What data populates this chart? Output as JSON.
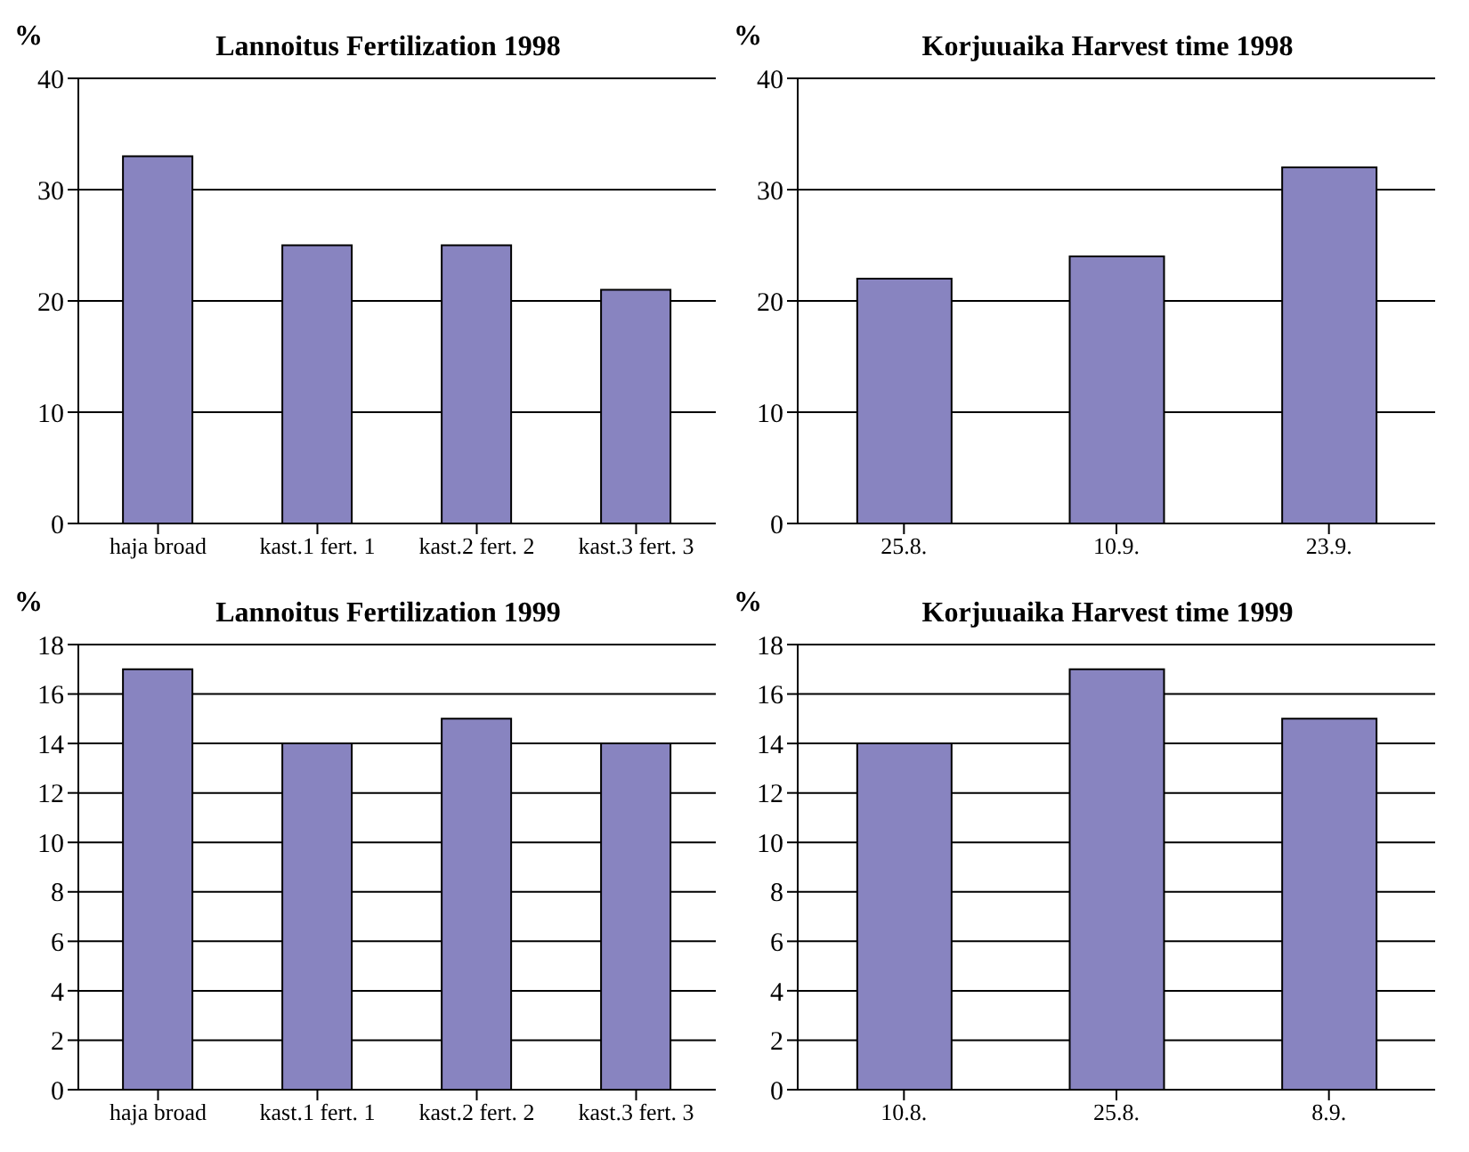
{
  "chart_data": [
    {
      "type": "bar",
      "title": "Lannoitus Fertilization 1998",
      "ylabel": "%",
      "categories": [
        "haja broad",
        "kast.1 fert. 1",
        "kast.2 fert. 2",
        "kast.3 fert. 3"
      ],
      "values": [
        33,
        25,
        25,
        21
      ],
      "color": "#8884c0",
      "ylim": [
        0,
        40
      ],
      "yticks": [
        0,
        10,
        20,
        30,
        40
      ],
      "grid": "y"
    },
    {
      "type": "bar",
      "title": "Korjuuaika Harvest time 1998",
      "ylabel": "%",
      "categories": [
        "25.8.",
        "10.9.",
        "23.9."
      ],
      "values": [
        22,
        24,
        32
      ],
      "color": "#8884c0",
      "ylim": [
        0,
        40
      ],
      "yticks": [
        0,
        10,
        20,
        30,
        40
      ],
      "grid": "y"
    },
    {
      "type": "bar",
      "title": "Lannoitus Fertilization 1999",
      "ylabel": "%",
      "categories": [
        "haja broad",
        "kast.1 fert. 1",
        "kast.2 fert. 2",
        "kast.3 fert. 3"
      ],
      "values": [
        17,
        14,
        15,
        14
      ],
      "color": "#8884c0",
      "ylim": [
        0,
        18
      ],
      "yticks": [
        0,
        2,
        4,
        6,
        8,
        10,
        12,
        14,
        16,
        18
      ],
      "grid": "y"
    },
    {
      "type": "bar",
      "title": "Korjuuaika Harvest time 1999",
      "ylabel": "%",
      "categories": [
        "10.8.",
        "25.8.",
        "8.9."
      ],
      "values": [
        14,
        17,
        15
      ],
      "color": "#8884c0",
      "ylim": [
        0,
        18
      ],
      "yticks": [
        0,
        2,
        4,
        6,
        8,
        10,
        12,
        14,
        16,
        18
      ],
      "grid": "y"
    }
  ]
}
